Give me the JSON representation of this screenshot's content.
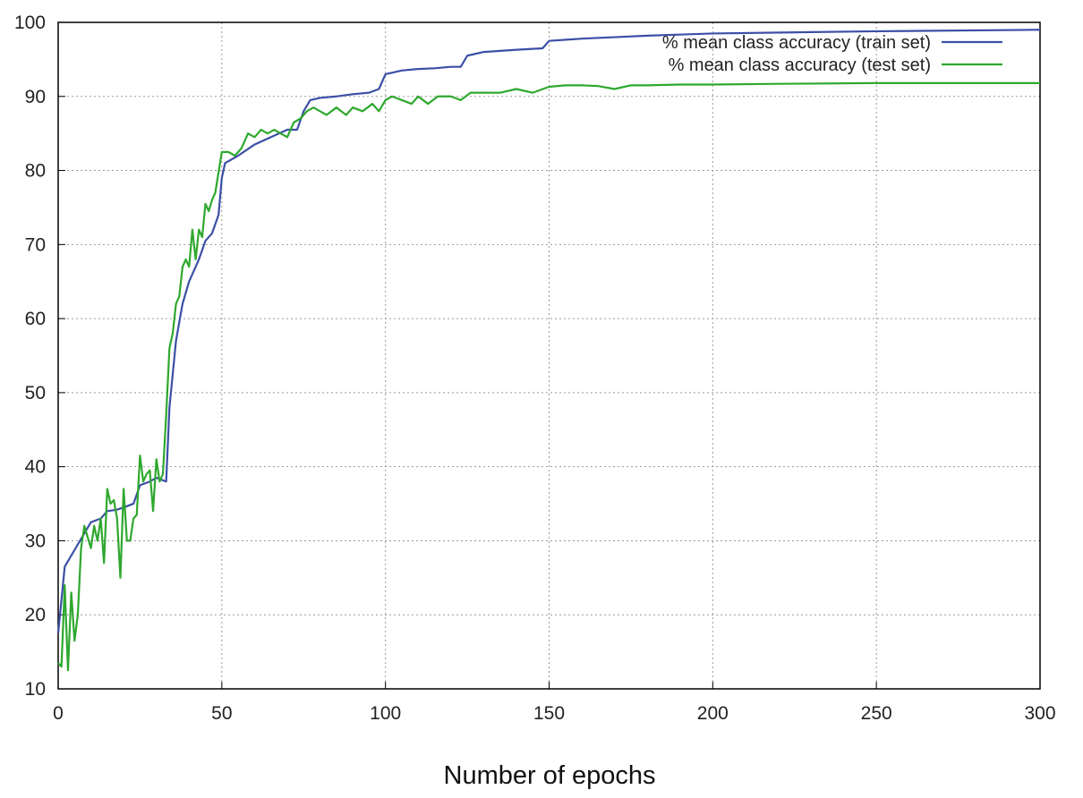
{
  "chart_data": {
    "type": "line",
    "x_label": "Number of epochs",
    "xlim": [
      0,
      300
    ],
    "xticks": [
      0,
      50,
      100,
      150,
      200,
      250,
      300
    ],
    "ylim": [
      10,
      100
    ],
    "yticks": [
      10,
      20,
      30,
      40,
      50,
      60,
      70,
      80,
      90,
      100
    ],
    "grid": true,
    "legend": "top-right",
    "series": [
      {
        "name": "% mean class accuracy (train set)",
        "color": "#3b4fa6",
        "x": [
          0,
          1,
          2,
          4,
          6,
          8,
          10,
          13,
          15,
          18,
          20,
          23,
          25,
          28,
          30,
          33,
          34,
          36,
          38,
          40,
          43,
          45,
          47,
          49,
          50,
          51,
          55,
          60,
          65,
          70,
          73,
          75,
          77,
          80,
          85,
          90,
          95,
          98,
          100,
          105,
          110,
          115,
          120,
          123,
          125,
          130,
          140,
          148,
          150,
          160,
          170,
          180,
          200,
          250,
          300
        ],
        "values": [
          17.5,
          22,
          26.5,
          28,
          29.5,
          31,
          32.5,
          33,
          34,
          34.2,
          34.5,
          35,
          37.5,
          38,
          38.5,
          38,
          48,
          57,
          62,
          65,
          68,
          70.5,
          71.5,
          74,
          79,
          81,
          82,
          83.5,
          84.5,
          85.5,
          85.5,
          88,
          89.5,
          89.8,
          90,
          90.3,
          90.5,
          91,
          93,
          93.5,
          93.7,
          93.8,
          94,
          94,
          95.5,
          96,
          96.3,
          96.5,
          97.5,
          97.8,
          98,
          98.2,
          98.5,
          98.8,
          99
        ]
      },
      {
        "name": "% mean class accuracy (test set)",
        "color": "#2ea82e",
        "x": [
          0,
          1,
          2,
          3,
          4,
          5,
          6,
          7,
          8,
          9,
          10,
          11,
          12,
          13,
          14,
          15,
          16,
          17,
          18,
          19,
          20,
          21,
          22,
          23,
          24,
          25,
          26,
          27,
          28,
          29,
          30,
          31,
          32,
          33,
          34,
          35,
          36,
          37,
          38,
          39,
          40,
          41,
          42,
          43,
          44,
          45,
          46,
          47,
          48,
          50,
          52,
          54,
          56,
          58,
          60,
          62,
          64,
          66,
          68,
          70,
          72,
          74,
          76,
          78,
          80,
          82,
          85,
          88,
          90,
          93,
          96,
          98,
          100,
          102,
          105,
          108,
          110,
          113,
          116,
          120,
          123,
          126,
          130,
          135,
          140,
          145,
          150,
          155,
          160,
          165,
          170,
          175,
          180,
          190,
          200,
          220,
          250,
          280,
          300
        ],
        "values": [
          13.5,
          13,
          24,
          12.5,
          23,
          16.5,
          20,
          29,
          32,
          30.5,
          29,
          32,
          30,
          33,
          27,
          37,
          35,
          35.5,
          33,
          25,
          37,
          30,
          30,
          33,
          33.5,
          41.5,
          38,
          39,
          39.5,
          34,
          41,
          38,
          39,
          47,
          56,
          58,
          62,
          63,
          67,
          68,
          67,
          72,
          68,
          72,
          71,
          75.5,
          74.5,
          76,
          77,
          82.5,
          82.5,
          82,
          83,
          85,
          84.5,
          85.5,
          85,
          85.5,
          85,
          84.5,
          86.5,
          87,
          88,
          88.5,
          88,
          87.5,
          88.5,
          87.5,
          88.5,
          88,
          89,
          88,
          89.5,
          90,
          89.5,
          89,
          90,
          89,
          90,
          90,
          89.5,
          90.5,
          90.5,
          90.5,
          91,
          90.5,
          91.3,
          91.5,
          91.5,
          91.4,
          91,
          91.5,
          91.5,
          91.6,
          91.6,
          91.7,
          91.8,
          91.8,
          91.8
        ]
      }
    ]
  }
}
